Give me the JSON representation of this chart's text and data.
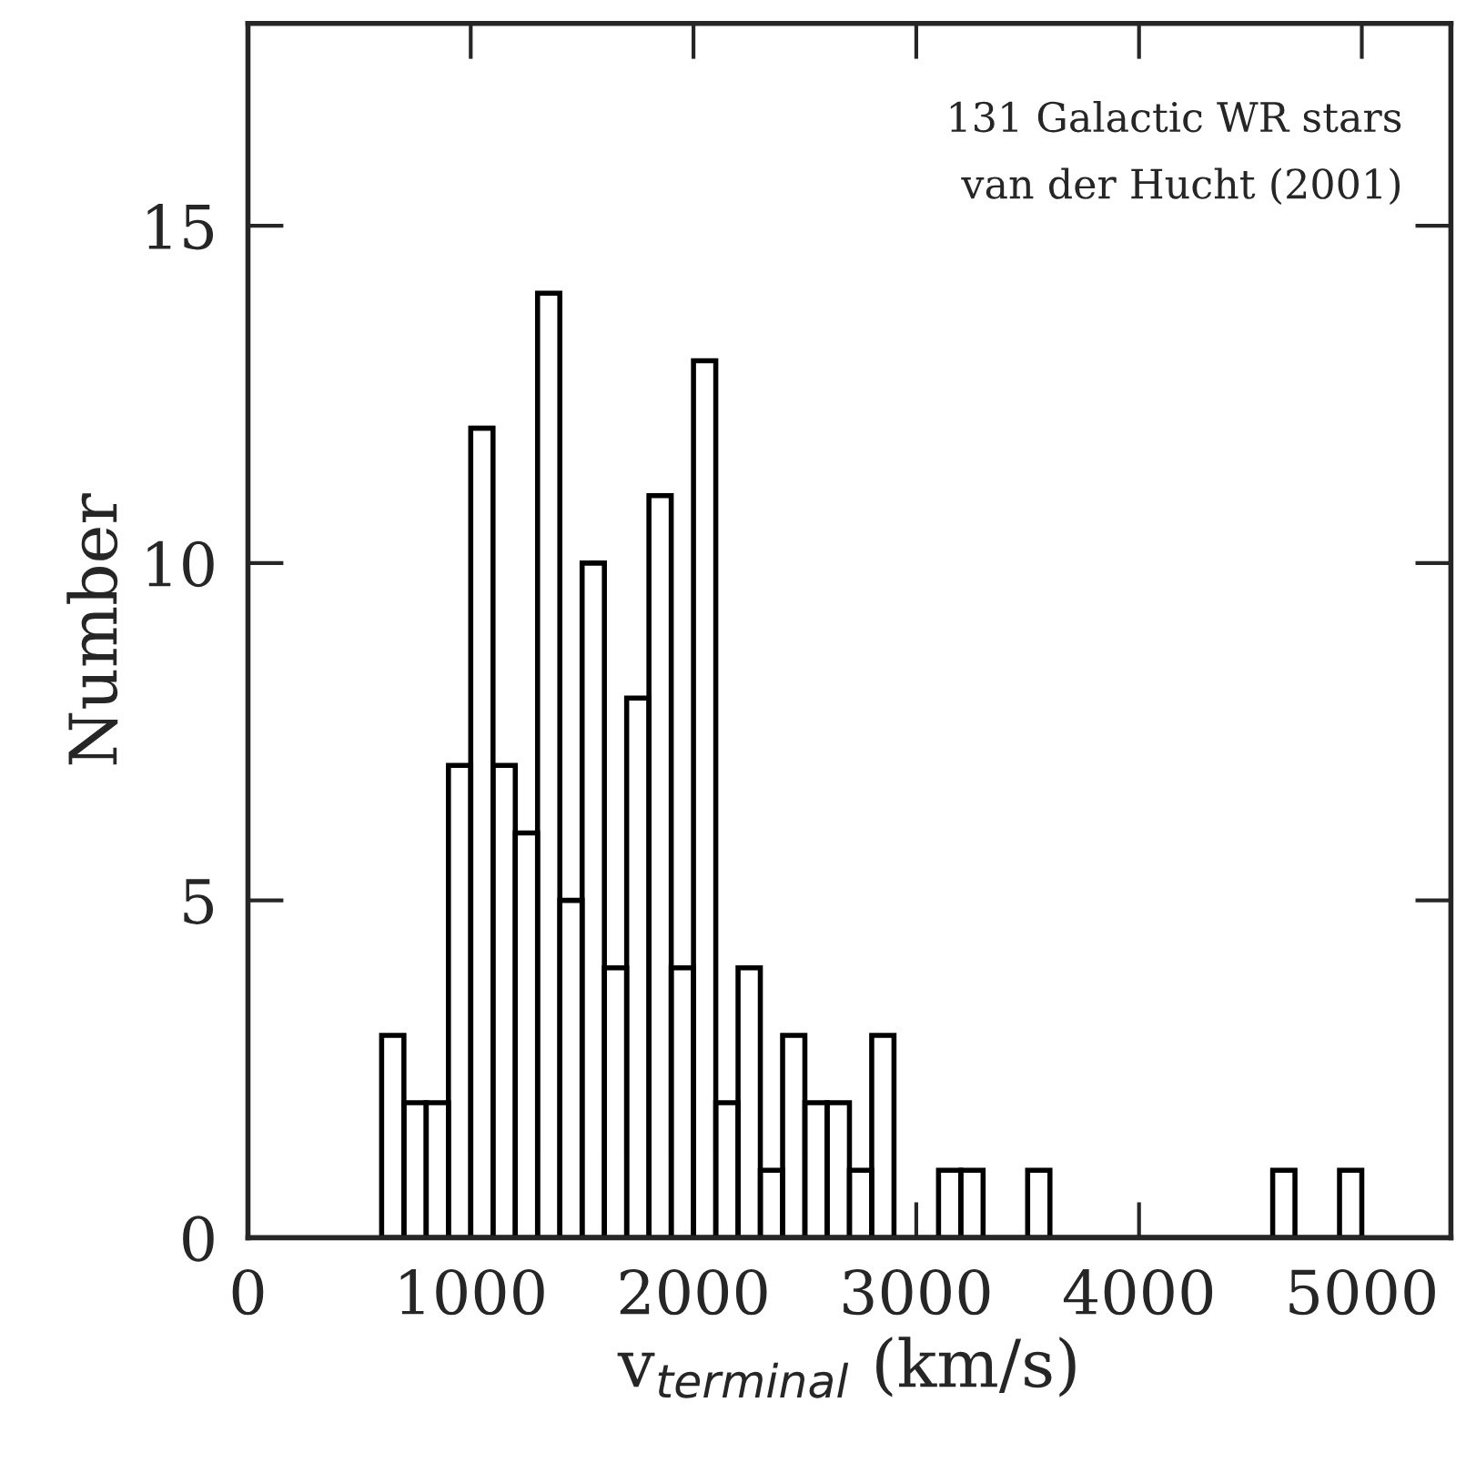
{
  "chart_data": {
    "type": "histogram",
    "xlabel": "v$_{terminal}$ (km/s)",
    "ylabel": "Number",
    "annotations": [
      "131 Galactic WR stars",
      "van der Hucht (2001)"
    ],
    "bins": [
      600,
      700,
      800,
      900,
      1000,
      1100,
      1200,
      1300,
      1400,
      1500,
      1600,
      1700,
      1800,
      1900,
      2000,
      2100,
      2200,
      2300,
      2400,
      2500,
      2600,
      2700,
      2800,
      2900,
      3000,
      3100,
      3200,
      3300,
      3400,
      3500,
      3600,
      3700,
      3800,
      3900,
      4000,
      4100,
      4200,
      4300,
      4400,
      4500,
      4600,
      4700,
      4800,
      4900,
      5000
    ],
    "values": [
      3,
      2,
      2,
      7,
      12,
      7,
      6,
      14,
      5,
      10,
      4,
      8,
      11,
      4,
      13,
      2,
      4,
      1,
      3,
      2,
      2,
      1,
      3,
      0,
      0,
      1,
      1,
      0,
      0,
      1,
      0,
      0,
      0,
      0,
      0,
      0,
      0,
      0,
      0,
      0,
      1,
      0,
      0,
      1
    ],
    "color": "#000000",
    "xlim": [
      0,
      5400
    ],
    "ylim": [
      0,
      18
    ],
    "xticks": [
      0,
      1000,
      2000,
      3000,
      4000,
      5000
    ],
    "yticks": [
      0,
      5,
      10,
      15
    ],
    "grid": false
  }
}
